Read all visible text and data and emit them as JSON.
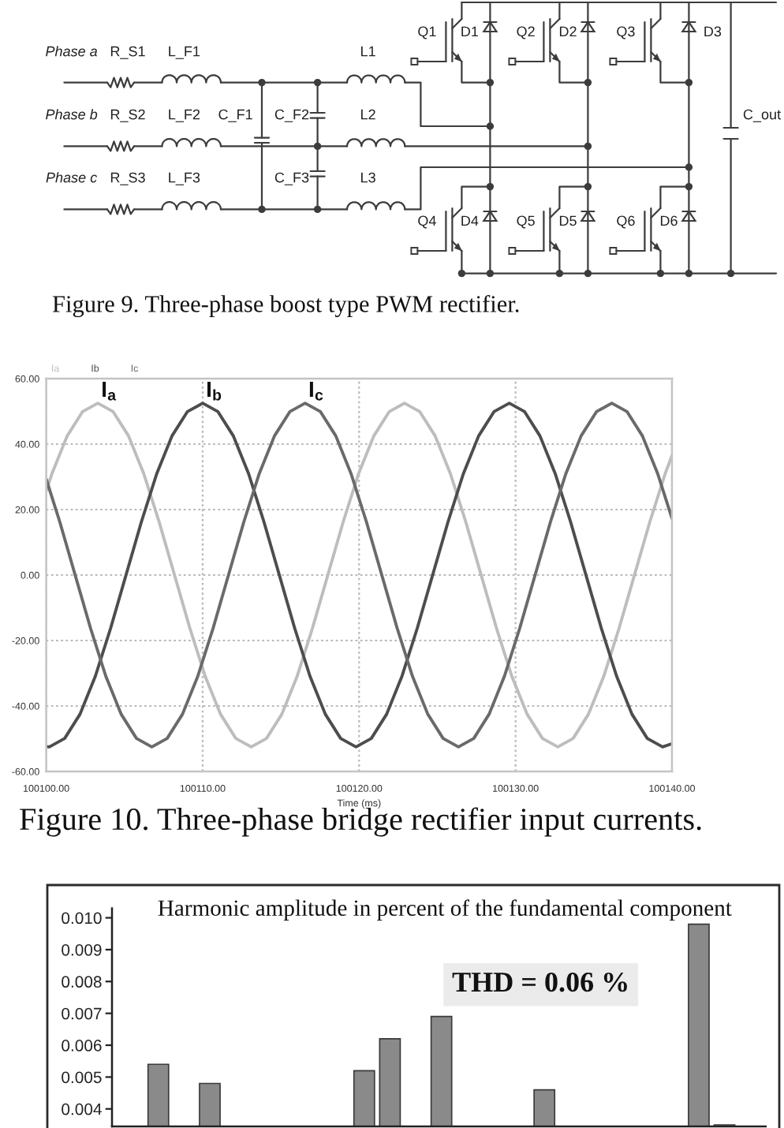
{
  "chart_data": [
    {
      "type": "other",
      "annotations": [
        "Phase a",
        "R_S1",
        "L_F1",
        "L1",
        "Q1",
        "D1",
        "Q2",
        "D2",
        "Q3",
        "D3",
        "Phase b",
        "R_S2",
        "L_F2",
        "C_F1",
        "C_F2",
        "L2",
        "C_out",
        "Phase c",
        "R_S3",
        "L_F3",
        "C_F3",
        "L3",
        "Q4",
        "D4",
        "Q5",
        "D5",
        "Q6",
        "D6",
        "Figure 9. Three-phase boost type PWM rectifier."
      ]
    },
    {
      "type": "line",
      "xlabel": "Time (ms)",
      "xlim": [
        100100,
        100140
      ],
      "xticks": [
        {
          "value": 100100,
          "label": "100100.00"
        },
        {
          "value": 100110,
          "label": "100110.00"
        },
        {
          "value": 100120,
          "label": "100120.00"
        },
        {
          "value": 100130,
          "label": "100130.00"
        },
        {
          "value": 100140,
          "label": "100140.00"
        }
      ],
      "ylim": [
        -60,
        60
      ],
      "yticks": [
        {
          "value": -60,
          "label": "-60.00"
        },
        {
          "value": -40,
          "label": "-40.00"
        },
        {
          "value": -20,
          "label": "-20.00"
        },
        {
          "value": 0,
          "label": "0.00"
        },
        {
          "value": 20,
          "label": "20.00"
        },
        {
          "value": 40,
          "label": "40.00"
        },
        {
          "value": 60,
          "label": "60.00"
        }
      ],
      "grid": true,
      "legend": "top left",
      "series": [
        {
          "name": "Ia",
          "color": "#bdbdbd",
          "x": [
            100100,
            100100.36,
            100101.34,
            100102.32,
            100103.3,
            100104.28,
            100105.26,
            100106.24,
            100107.22,
            100108.2,
            100109.18,
            100110.16,
            100111.14,
            100112.12,
            100113.1,
            100114.08,
            100115.06,
            100116.04,
            100117.02,
            100118,
            100118.98,
            100119.96,
            100120.94,
            100121.92,
            100122.9,
            100123.88,
            100124.86,
            100125.84,
            100126.82,
            100127.8,
            100128.78,
            100129.76,
            100130.74,
            100131.72,
            100132.7,
            100133.68,
            100134.66,
            100135.64,
            100136.62,
            100137.6,
            100138.58,
            100139.56,
            100140
          ],
          "values": [
            25.7,
            30.9,
            42.5,
            49.9,
            52.5,
            49.9,
            42.5,
            30.9,
            16.2,
            0,
            -16.2,
            -30.9,
            -42.5,
            -49.9,
            -52.5,
            -49.9,
            -42.5,
            -30.9,
            -16.2,
            0,
            16.2,
            30.9,
            42.5,
            49.9,
            52.5,
            49.9,
            42.5,
            30.9,
            16.2,
            0,
            -16.2,
            -30.9,
            -42.5,
            -49.9,
            -52.5,
            -49.9,
            -42.5,
            -30.9,
            -16.2,
            0,
            16.2,
            30.9,
            36.5
          ]
        },
        {
          "name": "Ib",
          "color": "#4d4d4d",
          "x": [
            100100,
            100100.2,
            100101.18,
            100102.16,
            100103.14,
            100104.12,
            100105.1,
            100106.08,
            100107.06,
            100108.04,
            100109.02,
            100110,
            100110.98,
            100111.96,
            100112.94,
            100113.92,
            100114.9,
            100115.88,
            100116.86,
            100117.84,
            100118.82,
            100119.8,
            100120.78,
            100121.76,
            100122.74,
            100123.72,
            100124.7,
            100125.68,
            100126.66,
            100127.64,
            100128.62,
            100129.6,
            100130.58,
            100131.56,
            100132.54,
            100133.52,
            100134.5,
            100135.48,
            100136.46,
            100137.44,
            100138.42,
            100139.4,
            100140
          ],
          "values": [
            -52.4,
            -52.5,
            -49.9,
            -42.5,
            -30.9,
            -16.2,
            0,
            16.2,
            30.9,
            42.5,
            49.9,
            52.5,
            49.9,
            42.5,
            30.9,
            16.2,
            0,
            -16.2,
            -30.9,
            -42.5,
            -49.9,
            -52.5,
            -49.9,
            -42.5,
            -30.9,
            -16.2,
            0,
            16.2,
            30.9,
            42.5,
            49.9,
            52.5,
            49.9,
            42.5,
            30.9,
            16.2,
            0,
            -16.2,
            -30.9,
            -42.5,
            -49.9,
            -52.5,
            -51.5
          ]
        },
        {
          "name": "Ic",
          "color": "#6a6a6a",
          "x": [
            100100,
            100100.87,
            100101.85,
            100102.83,
            100103.81,
            100104.79,
            100105.77,
            100106.75,
            100107.73,
            100108.71,
            100109.69,
            100110.67,
            100111.65,
            100112.63,
            100113.61,
            100114.59,
            100115.57,
            100116.55,
            100117.53,
            100118.51,
            100119.49,
            100120.47,
            100121.45,
            100122.43,
            100123.41,
            100124.39,
            100125.37,
            100126.35,
            100127.33,
            100128.31,
            100129.29,
            100130.27,
            100131.25,
            100132.23,
            100133.21,
            100134.19,
            100135.17,
            100136.15,
            100137.13,
            100138.11,
            100139.09,
            100140
          ],
          "values": [
            29.3,
            16.2,
            0,
            -16.2,
            -30.9,
            -42.5,
            -49.9,
            -52.5,
            -49.9,
            -42.5,
            -30.9,
            -16.2,
            0,
            16.2,
            30.9,
            42.5,
            49.9,
            52.5,
            49.9,
            42.5,
            30.9,
            16.2,
            0,
            -16.2,
            -30.9,
            -42.5,
            -49.9,
            -52.5,
            -49.9,
            -42.5,
            -30.9,
            -16.2,
            0,
            16.2,
            30.9,
            42.5,
            49.9,
            52.5,
            49.9,
            42.5,
            30.9,
            17.3
          ]
        }
      ],
      "annotations": [
        {
          "text": "I$_{a}$",
          "x": 100103.3,
          "y": 52.5
        },
        {
          "text": "I$_{b}$",
          "x": 100110,
          "y": 52.5
        },
        {
          "text": "I$_{c}$",
          "x": 100116.55,
          "y": 52.5
        },
        "Figure 10. Three-phase bridge rectifier input currents."
      ]
    },
    {
      "type": "bar",
      "title": "Harmonic amplitude in percent of the fundamental component",
      "categories": [
        null,
        null,
        null,
        null,
        null,
        null,
        null,
        null,
        null,
        null,
        null,
        null,
        null,
        null,
        null,
        null,
        null,
        null,
        null,
        null,
        null,
        null,
        null,
        null,
        null
      ],
      "values": [
        null,
        0.0054,
        null,
        0.0048,
        null,
        null,
        null,
        null,
        null,
        0.0052,
        0.0062,
        null,
        0.0069,
        null,
        null,
        null,
        0.0046,
        null,
        null,
        null,
        null,
        null,
        0.0098,
        0.0035,
        null
      ],
      "color": "#8a8a8a",
      "ylim": [
        0.00345,
        0.0103
      ],
      "yticks": [
        0.004,
        0.005,
        0.006,
        0.007,
        0.008,
        0.009,
        {
          "value": 0.01,
          "label": "0.010"
        }
      ],
      "tick_labels": "y",
      "annotations": [
        "THD = 0.06 %"
      ]
    }
  ]
}
